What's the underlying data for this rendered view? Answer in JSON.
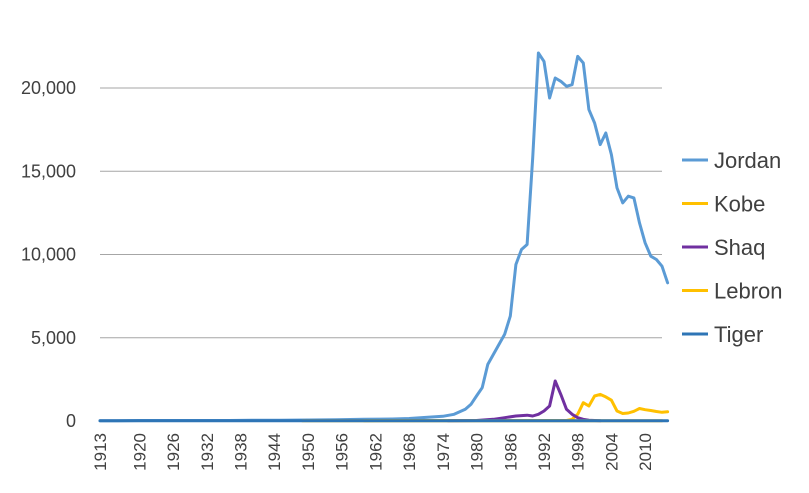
{
  "chart_data": {
    "type": "line",
    "title": "",
    "xlabel": "",
    "ylabel": "",
    "ylim": [
      0,
      22000
    ],
    "yticks": [
      0,
      5000,
      10000,
      15000,
      20000
    ],
    "ytick_labels": [
      "0",
      "5,000",
      "10,000",
      "15,000",
      "20,000"
    ],
    "xlim": [
      1913,
      2013
    ],
    "xticks": [
      1913,
      1920,
      1926,
      1932,
      1938,
      1944,
      1950,
      1956,
      1962,
      1968,
      1974,
      1980,
      1986,
      1992,
      1998,
      2004,
      2010
    ],
    "grid": "horizontal",
    "legend_position": "right",
    "series": [
      {
        "name": "Jordan",
        "color": "#5B9BD5",
        "points": [
          [
            1913,
            10
          ],
          [
            1916,
            20
          ],
          [
            1920,
            30
          ],
          [
            1925,
            30
          ],
          [
            1930,
            30
          ],
          [
            1936,
            30
          ],
          [
            1940,
            40
          ],
          [
            1945,
            50
          ],
          [
            1950,
            60
          ],
          [
            1955,
            80
          ],
          [
            1960,
            100
          ],
          [
            1965,
            120
          ],
          [
            1968,
            150
          ],
          [
            1970,
            200
          ],
          [
            1974,
            280
          ],
          [
            1976,
            400
          ],
          [
            1978,
            700
          ],
          [
            1979,
            1000
          ],
          [
            1980,
            1500
          ],
          [
            1981,
            2000
          ],
          [
            1982,
            3400
          ],
          [
            1983,
            4000
          ],
          [
            1984,
            4600
          ],
          [
            1985,
            5200
          ],
          [
            1986,
            6300
          ],
          [
            1987,
            9400
          ],
          [
            1988,
            10300
          ],
          [
            1989,
            10600
          ],
          [
            1990,
            15800
          ],
          [
            1991,
            22100
          ],
          [
            1992,
            21600
          ],
          [
            1993,
            19400
          ],
          [
            1994,
            20600
          ],
          [
            1995,
            20400
          ],
          [
            1996,
            20100
          ],
          [
            1997,
            20200
          ],
          [
            1998,
            21900
          ],
          [
            1999,
            21500
          ],
          [
            2000,
            18700
          ],
          [
            2001,
            17900
          ],
          [
            2002,
            16600
          ],
          [
            2003,
            17300
          ],
          [
            2004,
            16000
          ],
          [
            2005,
            14000
          ],
          [
            2006,
            13100
          ],
          [
            2007,
            13500
          ],
          [
            2008,
            13400
          ],
          [
            2009,
            11900
          ],
          [
            2010,
            10700
          ],
          [
            2011,
            9900
          ],
          [
            2012,
            9700
          ],
          [
            2013,
            9300
          ],
          [
            2014,
            8300
          ]
        ]
      },
      {
        "name": "Kobe",
        "color": "#FFC000",
        "points": [
          [
            1949,
            20
          ],
          [
            1951,
            20
          ],
          [
            1955,
            20
          ],
          [
            1958,
            20
          ],
          [
            1960,
            20
          ],
          [
            1996,
            30
          ],
          [
            1997,
            100
          ],
          [
            1998,
            400
          ],
          [
            1999,
            1100
          ],
          [
            2000,
            900
          ],
          [
            2001,
            1500
          ],
          [
            2002,
            1600
          ],
          [
            2003,
            1450
          ],
          [
            2004,
            1250
          ],
          [
            2005,
            600
          ],
          [
            2006,
            450
          ],
          [
            2007,
            480
          ],
          [
            2008,
            580
          ],
          [
            2009,
            750
          ],
          [
            2010,
            680
          ],
          [
            2011,
            630
          ],
          [
            2012,
            570
          ],
          [
            2013,
            520
          ],
          [
            2014,
            560
          ]
        ]
      },
      {
        "name": "Shaq",
        "color": "#7030A0",
        "points": [
          [
            1975,
            10
          ],
          [
            1980,
            30
          ],
          [
            1983,
            100
          ],
          [
            1985,
            200
          ],
          [
            1987,
            300
          ],
          [
            1989,
            350
          ],
          [
            1990,
            300
          ],
          [
            1991,
            400
          ],
          [
            1992,
            600
          ],
          [
            1993,
            900
          ],
          [
            1994,
            2400
          ],
          [
            1995,
            1600
          ],
          [
            1996,
            700
          ],
          [
            1997,
            400
          ],
          [
            1998,
            200
          ],
          [
            1999,
            100
          ],
          [
            2000,
            50
          ],
          [
            2001,
            30
          ],
          [
            2002,
            10
          ]
        ]
      },
      {
        "name": "Lebron",
        "color": "#FFC000",
        "points": [
          [
            1960,
            20
          ],
          [
            1962,
            20
          ],
          [
            2003,
            20
          ],
          [
            2006,
            20
          ],
          [
            2010,
            20
          ],
          [
            2013,
            20
          ]
        ]
      },
      {
        "name": "Tiger",
        "color": "#2E75B6",
        "points": [
          [
            1913,
            10
          ],
          [
            1930,
            10
          ],
          [
            1950,
            10
          ],
          [
            1970,
            10
          ],
          [
            2000,
            10
          ],
          [
            2010,
            10
          ],
          [
            2014,
            10
          ]
        ]
      }
    ]
  }
}
